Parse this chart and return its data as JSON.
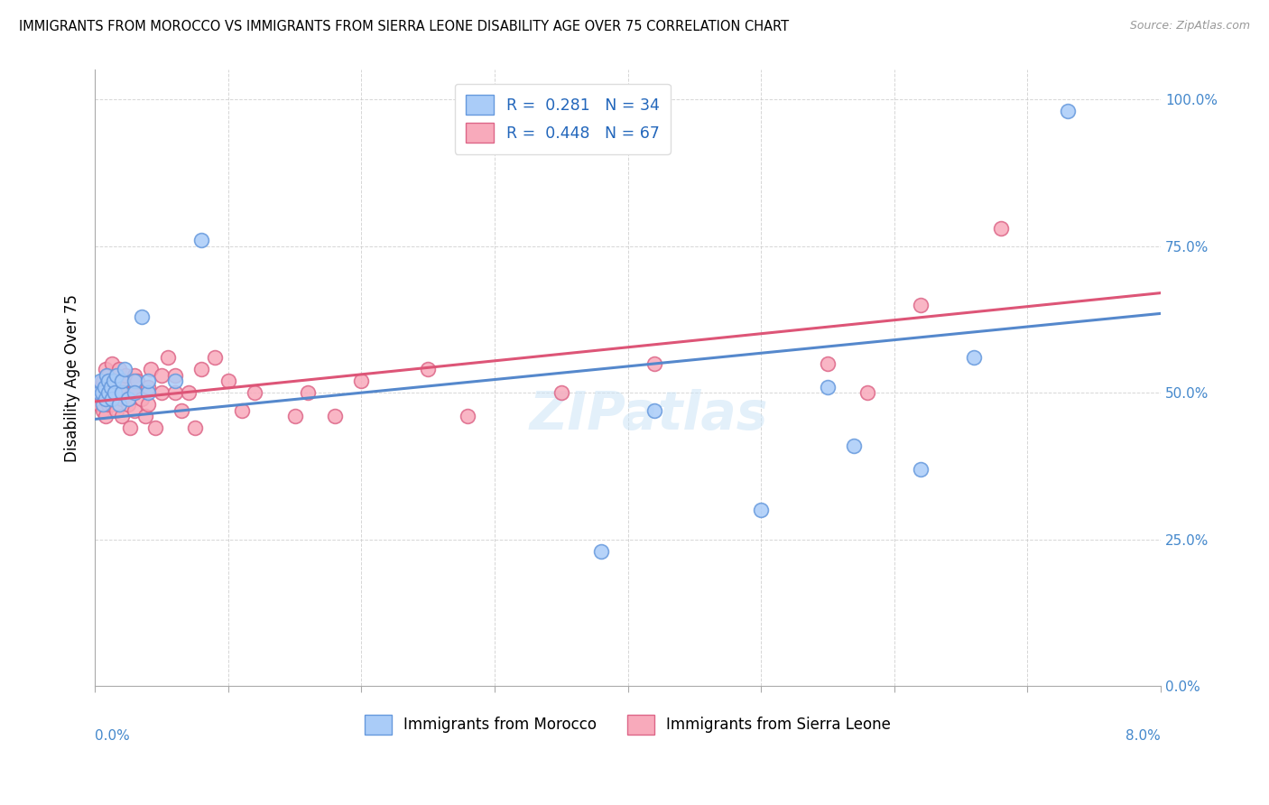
{
  "title": "IMMIGRANTS FROM MOROCCO VS IMMIGRANTS FROM SIERRA LEONE DISABILITY AGE OVER 75 CORRELATION CHART",
  "source": "Source: ZipAtlas.com",
  "ylabel": "Disability Age Over 75",
  "morocco_color": "#aaccf8",
  "sierra_leone_color": "#f8aabb",
  "morocco_edge_color": "#6699dd",
  "sierra_leone_edge_color": "#dd6688",
  "morocco_line_color": "#5588cc",
  "sierra_leone_line_color": "#dd5577",
  "watermark": "ZIPatlas",
  "legend1_label": "R =  0.281   N = 34",
  "legend2_label": "R =  0.448   N = 67",
  "morocco_legend": "Immigrants from Morocco",
  "sierra_leone_legend": "Immigrants from Sierra Leone",
  "xlim": [
    0.0,
    0.08
  ],
  "ylim": [
    0.0,
    1.05
  ],
  "morocco_x": [
    0.0003,
    0.0004,
    0.0005,
    0.0006,
    0.0007,
    0.0008,
    0.0009,
    0.001,
    0.001,
    0.0012,
    0.0013,
    0.0014,
    0.0015,
    0.0016,
    0.0018,
    0.002,
    0.002,
    0.0022,
    0.0025,
    0.003,
    0.003,
    0.0035,
    0.004,
    0.004,
    0.006,
    0.008,
    0.038,
    0.042,
    0.05,
    0.055,
    0.057,
    0.062,
    0.066,
    0.073
  ],
  "morocco_y": [
    0.5,
    0.52,
    0.5,
    0.48,
    0.51,
    0.49,
    0.53,
    0.52,
    0.5,
    0.51,
    0.49,
    0.52,
    0.5,
    0.53,
    0.48,
    0.5,
    0.52,
    0.54,
    0.49,
    0.52,
    0.5,
    0.63,
    0.5,
    0.52,
    0.52,
    0.76,
    0.23,
    0.47,
    0.3,
    0.51,
    0.41,
    0.37,
    0.56,
    0.98
  ],
  "sierra_leone_x": [
    0.0002,
    0.0003,
    0.0004,
    0.0005,
    0.0006,
    0.0006,
    0.0007,
    0.0008,
    0.0008,
    0.0009,
    0.001,
    0.001,
    0.001,
    0.0011,
    0.0012,
    0.0013,
    0.0013,
    0.0014,
    0.0015,
    0.0015,
    0.0016,
    0.0017,
    0.0018,
    0.0019,
    0.002,
    0.002,
    0.002,
    0.0022,
    0.0023,
    0.0025,
    0.0026,
    0.0028,
    0.003,
    0.003,
    0.003,
    0.0032,
    0.0035,
    0.0038,
    0.004,
    0.004,
    0.0042,
    0.0045,
    0.005,
    0.005,
    0.0055,
    0.006,
    0.006,
    0.0065,
    0.007,
    0.0075,
    0.008,
    0.009,
    0.01,
    0.011,
    0.012,
    0.015,
    0.016,
    0.018,
    0.02,
    0.025,
    0.028,
    0.035,
    0.042,
    0.055,
    0.058,
    0.062,
    0.068
  ],
  "sierra_leone_y": [
    0.5,
    0.48,
    0.51,
    0.5,
    0.47,
    0.52,
    0.49,
    0.46,
    0.54,
    0.51,
    0.48,
    0.5,
    0.53,
    0.52,
    0.5,
    0.48,
    0.55,
    0.51,
    0.49,
    0.52,
    0.47,
    0.5,
    0.54,
    0.51,
    0.46,
    0.49,
    0.52,
    0.5,
    0.53,
    0.48,
    0.44,
    0.5,
    0.47,
    0.5,
    0.53,
    0.52,
    0.49,
    0.46,
    0.48,
    0.51,
    0.54,
    0.44,
    0.5,
    0.53,
    0.56,
    0.5,
    0.53,
    0.47,
    0.5,
    0.44,
    0.54,
    0.56,
    0.52,
    0.47,
    0.5,
    0.46,
    0.5,
    0.46,
    0.52,
    0.54,
    0.46,
    0.5,
    0.55,
    0.55,
    0.5,
    0.65,
    0.78
  ]
}
